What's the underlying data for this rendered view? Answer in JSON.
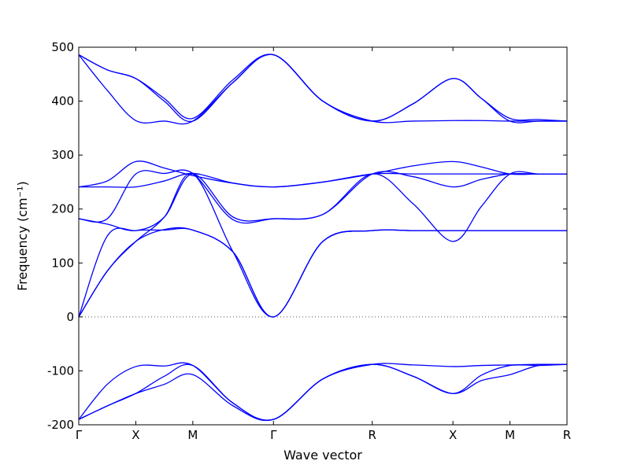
{
  "chart_data": {
    "type": "line",
    "title": "",
    "xlabel": "Wave vector",
    "ylabel": "Frequency (cm⁻¹)",
    "ylim": [
      -200,
      500
    ],
    "yticks": [
      -200,
      -100,
      0,
      100,
      200,
      300,
      400,
      500
    ],
    "grid": false,
    "legend": "none",
    "line_color": "#0000ff",
    "zero_line": {
      "y": 0,
      "style": "dotted"
    },
    "high_symmetry_points": [
      {
        "label": "Γ",
        "x": 0.0
      },
      {
        "label": "X",
        "x": 0.5
      },
      {
        "label": "M",
        "x": 1.0
      },
      {
        "label": "Γ",
        "x": 1.7071
      },
      {
        "label": "R",
        "x": 2.5731
      },
      {
        "label": "X",
        "x": 3.2802
      },
      {
        "label": "M",
        "x": 3.7802
      },
      {
        "label": "R",
        "x": 4.2802
      }
    ],
    "bands": [
      {
        "name": "",
        "points": [
          [
            0,
            -190
          ],
          [
            0.25,
            -165
          ],
          [
            0.5,
            -142
          ],
          [
            0.75,
            -125
          ],
          [
            1.0,
            -107
          ],
          [
            1.354,
            -165
          ],
          [
            1.7071,
            -190
          ],
          [
            2.14,
            -115
          ],
          [
            2.5731,
            -88
          ],
          [
            2.93,
            -110
          ],
          [
            3.2802,
            -142
          ],
          [
            3.53,
            -118
          ],
          [
            3.7802,
            -107
          ],
          [
            4.03,
            -90
          ],
          [
            4.2802,
            -88
          ]
        ]
      },
      {
        "name": "",
        "points": [
          [
            0,
            -190
          ],
          [
            0.25,
            -165
          ],
          [
            0.5,
            -142
          ],
          [
            0.75,
            -110
          ],
          [
            1.0,
            -90
          ],
          [
            1.354,
            -160
          ],
          [
            1.7071,
            -190
          ],
          [
            2.14,
            -115
          ],
          [
            2.5731,
            -88
          ],
          [
            2.93,
            -110
          ],
          [
            3.2802,
            -142
          ],
          [
            3.53,
            -108
          ],
          [
            3.7802,
            -90
          ],
          [
            4.03,
            -90
          ],
          [
            4.2802,
            -88
          ]
        ]
      },
      {
        "name": "",
        "points": [
          [
            0,
            -190
          ],
          [
            0.25,
            -125
          ],
          [
            0.5,
            -92
          ],
          [
            0.75,
            -91
          ],
          [
            1.0,
            -90
          ],
          [
            1.354,
            -160
          ],
          [
            1.7071,
            -190
          ],
          [
            2.14,
            -115
          ],
          [
            2.5731,
            -88
          ],
          [
            2.93,
            -89
          ],
          [
            3.2802,
            -92
          ],
          [
            3.53,
            -90
          ],
          [
            3.7802,
            -89
          ],
          [
            4.03,
            -88
          ],
          [
            4.2802,
            -88
          ]
        ]
      },
      {
        "name": "",
        "points": [
          [
            0,
            0
          ],
          [
            0.25,
            85
          ],
          [
            0.5,
            140
          ],
          [
            0.75,
            185
          ],
          [
            1.0,
            265
          ],
          [
            1.354,
            120
          ],
          [
            1.7071,
            0
          ],
          [
            2.14,
            140
          ],
          [
            2.5731,
            160
          ],
          [
            2.93,
            160
          ],
          [
            3.2802,
            160
          ],
          [
            3.53,
            160
          ],
          [
            3.7802,
            160
          ],
          [
            4.03,
            160
          ],
          [
            4.2802,
            160
          ]
        ]
      },
      {
        "name": "",
        "points": [
          [
            0,
            0
          ],
          [
            0.25,
            85
          ],
          [
            0.5,
            140
          ],
          [
            0.75,
            162
          ],
          [
            1.0,
            161
          ],
          [
            1.354,
            120
          ],
          [
            1.7071,
            0
          ],
          [
            2.14,
            140
          ],
          [
            2.5731,
            160
          ],
          [
            2.93,
            160
          ],
          [
            3.2802,
            160
          ],
          [
            3.53,
            160
          ],
          [
            3.7802,
            160
          ],
          [
            4.03,
            160
          ],
          [
            4.2802,
            160
          ]
        ]
      },
      {
        "name": "",
        "points": [
          [
            0,
            0
          ],
          [
            0.25,
            150
          ],
          [
            0.5,
            160
          ],
          [
            0.75,
            161
          ],
          [
            1.0,
            161
          ],
          [
            1.354,
            120
          ],
          [
            1.7071,
            0
          ],
          [
            2.14,
            140
          ],
          [
            2.5731,
            160
          ],
          [
            2.93,
            160
          ],
          [
            3.2802,
            160
          ],
          [
            3.53,
            160
          ],
          [
            3.7802,
            160
          ],
          [
            4.03,
            160
          ],
          [
            4.2802,
            160
          ]
        ]
      },
      {
        "name": "",
        "points": [
          [
            0,
            182
          ],
          [
            0.25,
            172
          ],
          [
            0.5,
            160
          ],
          [
            0.75,
            185
          ],
          [
            1.0,
            265
          ],
          [
            1.354,
            185
          ],
          [
            1.7071,
            182
          ],
          [
            2.14,
            190
          ],
          [
            2.5731,
            265
          ],
          [
            2.93,
            210
          ],
          [
            3.2802,
            140
          ],
          [
            3.53,
            205
          ],
          [
            3.7802,
            265
          ],
          [
            4.03,
            265
          ],
          [
            4.2802,
            265
          ]
        ]
      },
      {
        "name": "",
        "points": [
          [
            0,
            182
          ],
          [
            0.25,
            182
          ],
          [
            0.5,
            265
          ],
          [
            0.75,
            266
          ],
          [
            1.0,
            266
          ],
          [
            1.354,
            180
          ],
          [
            1.7071,
            182
          ],
          [
            2.14,
            190
          ],
          [
            2.5731,
            265
          ],
          [
            2.93,
            260
          ],
          [
            3.2802,
            241
          ],
          [
            3.53,
            255
          ],
          [
            3.7802,
            265
          ],
          [
            4.03,
            265
          ],
          [
            4.2802,
            265
          ]
        ]
      },
      {
        "name": "",
        "points": [
          [
            0,
            241
          ],
          [
            0.25,
            241
          ],
          [
            0.5,
            241
          ],
          [
            0.75,
            252
          ],
          [
            1.0,
            266
          ],
          [
            1.354,
            248
          ],
          [
            1.7071,
            241
          ],
          [
            2.14,
            250
          ],
          [
            2.5731,
            265
          ],
          [
            2.93,
            265
          ],
          [
            3.2802,
            265
          ],
          [
            3.53,
            265
          ],
          [
            3.7802,
            265
          ],
          [
            4.03,
            265
          ],
          [
            4.2802,
            265
          ]
        ]
      },
      {
        "name": "",
        "points": [
          [
            0,
            241
          ],
          [
            0.25,
            252
          ],
          [
            0.5,
            288
          ],
          [
            0.75,
            276
          ],
          [
            1.0,
            262
          ],
          [
            1.354,
            248
          ],
          [
            1.7071,
            241
          ],
          [
            2.14,
            250
          ],
          [
            2.5731,
            265
          ],
          [
            2.93,
            280
          ],
          [
            3.2802,
            288
          ],
          [
            3.53,
            278
          ],
          [
            3.7802,
            265
          ],
          [
            4.03,
            265
          ],
          [
            4.2802,
            265
          ]
        ]
      },
      {
        "name": "",
        "points": [
          [
            0,
            486
          ],
          [
            0.25,
            420
          ],
          [
            0.5,
            364
          ],
          [
            0.75,
            363
          ],
          [
            1.0,
            363
          ],
          [
            1.354,
            435
          ],
          [
            1.7071,
            486
          ],
          [
            2.14,
            400
          ],
          [
            2.5731,
            363
          ],
          [
            2.93,
            363
          ],
          [
            3.2802,
            364
          ],
          [
            3.53,
            364
          ],
          [
            3.7802,
            363
          ],
          [
            4.03,
            363
          ],
          [
            4.2802,
            363
          ]
        ]
      },
      {
        "name": "",
        "points": [
          [
            0,
            486
          ],
          [
            0.25,
            458
          ],
          [
            0.5,
            442
          ],
          [
            0.75,
            400
          ],
          [
            1.0,
            363
          ],
          [
            1.354,
            435
          ],
          [
            1.7071,
            486
          ],
          [
            2.14,
            400
          ],
          [
            2.5731,
            363
          ],
          [
            2.93,
            395
          ],
          [
            3.2802,
            442
          ],
          [
            3.53,
            405
          ],
          [
            3.7802,
            363
          ],
          [
            4.03,
            363
          ],
          [
            4.2802,
            363
          ]
        ]
      },
      {
        "name": "",
        "points": [
          [
            0,
            486
          ],
          [
            0.25,
            458
          ],
          [
            0.5,
            442
          ],
          [
            0.75,
            405
          ],
          [
            1.0,
            368
          ],
          [
            1.354,
            440
          ],
          [
            1.7071,
            486
          ],
          [
            2.14,
            400
          ],
          [
            2.5731,
            363
          ],
          [
            2.93,
            395
          ],
          [
            3.2802,
            442
          ],
          [
            3.53,
            405
          ],
          [
            3.7802,
            368
          ],
          [
            4.03,
            366
          ],
          [
            4.2802,
            363
          ]
        ]
      }
    ]
  }
}
